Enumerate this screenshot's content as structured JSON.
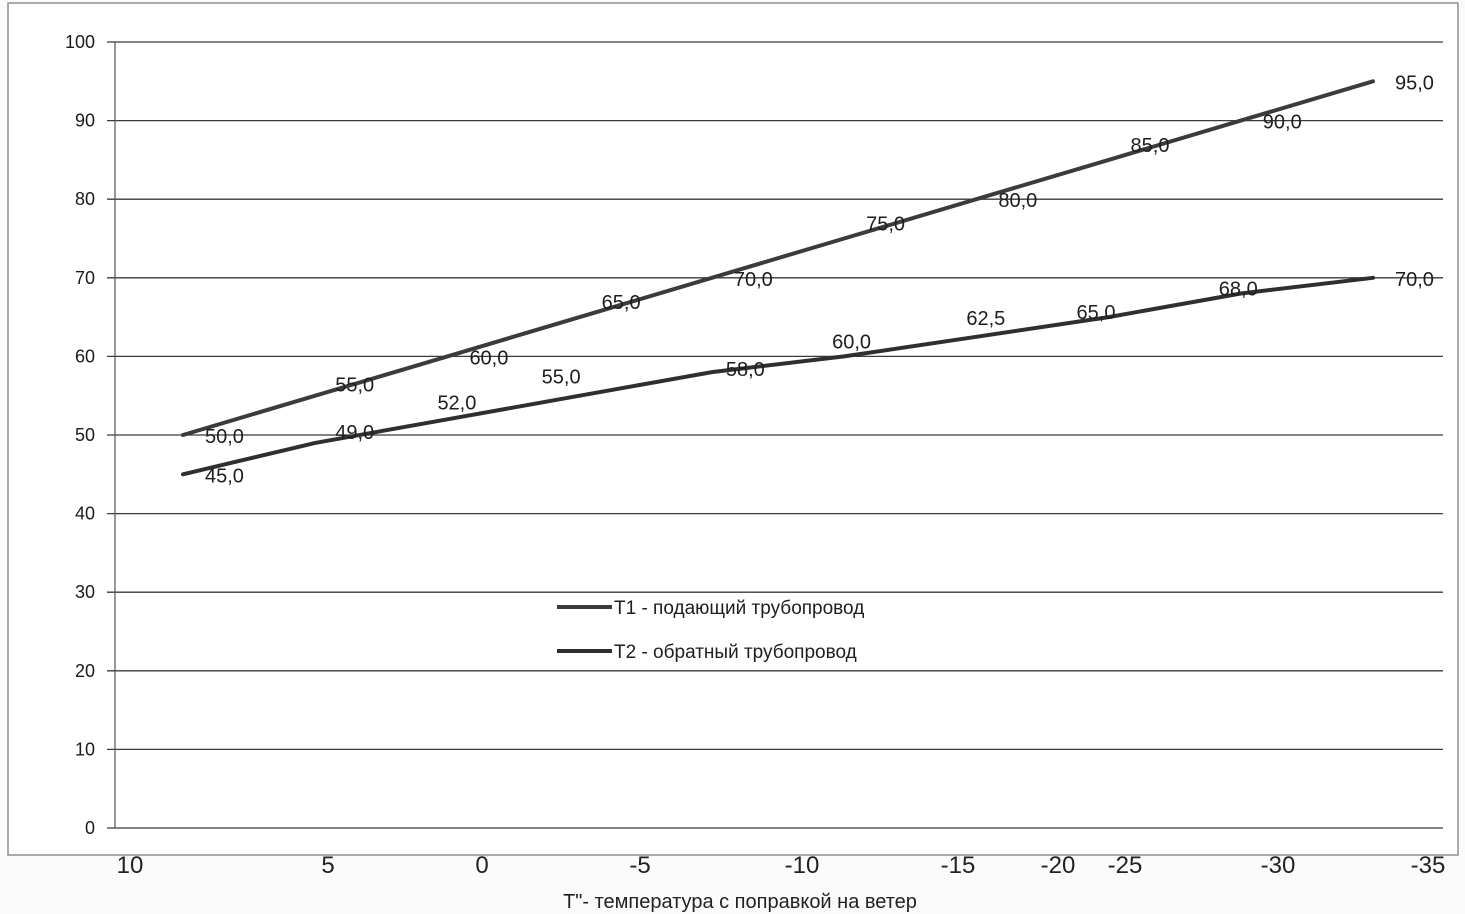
{
  "chart_data": {
    "type": "line",
    "title": "",
    "xlabel": "Т\"- температура с поправкой на ветер",
    "ylabel": "",
    "ylim": [
      0,
      100
    ],
    "y_ticks": [
      "0",
      "10",
      "20",
      "30",
      "40",
      "50",
      "60",
      "70",
      "80",
      "90",
      "100"
    ],
    "x_tick_labels": [
      "10",
      "5",
      "0",
      "-5",
      "-10",
      "-15",
      "-20",
      "-25",
      "-30",
      "-35"
    ],
    "x": [
      8,
      4,
      0,
      -4,
      -8,
      -12,
      -16,
      -20,
      -24,
      -28
    ],
    "series": [
      {
        "name": "Т1 - подающий трубопровод",
        "values": [
          50.0,
          55.0,
          60.0,
          65.0,
          70.0,
          75.0,
          80.0,
          85.0,
          90.0,
          95.0
        ],
        "labels": [
          "50,0",
          "55,0",
          "60,0",
          "65,0",
          "70,0",
          "75,0",
          "80,0",
          "85,0",
          "90,0",
          "95,0"
        ],
        "color": "#3b3b3b"
      },
      {
        "name": "Т2 - обратный трубопровод",
        "values": [
          45.0,
          49.0,
          52.0,
          55.0,
          58.0,
          60.0,
          62.5,
          65.0,
          68.0,
          70.0
        ],
        "labels": [
          "45,0",
          "49,0",
          "52,0",
          "55,0",
          "58,0",
          "60,0",
          "62,5",
          "65,0",
          "68,0",
          "70,0"
        ],
        "color": "#2f2f2f"
      }
    ],
    "grid": true,
    "legend_position": "center"
  }
}
